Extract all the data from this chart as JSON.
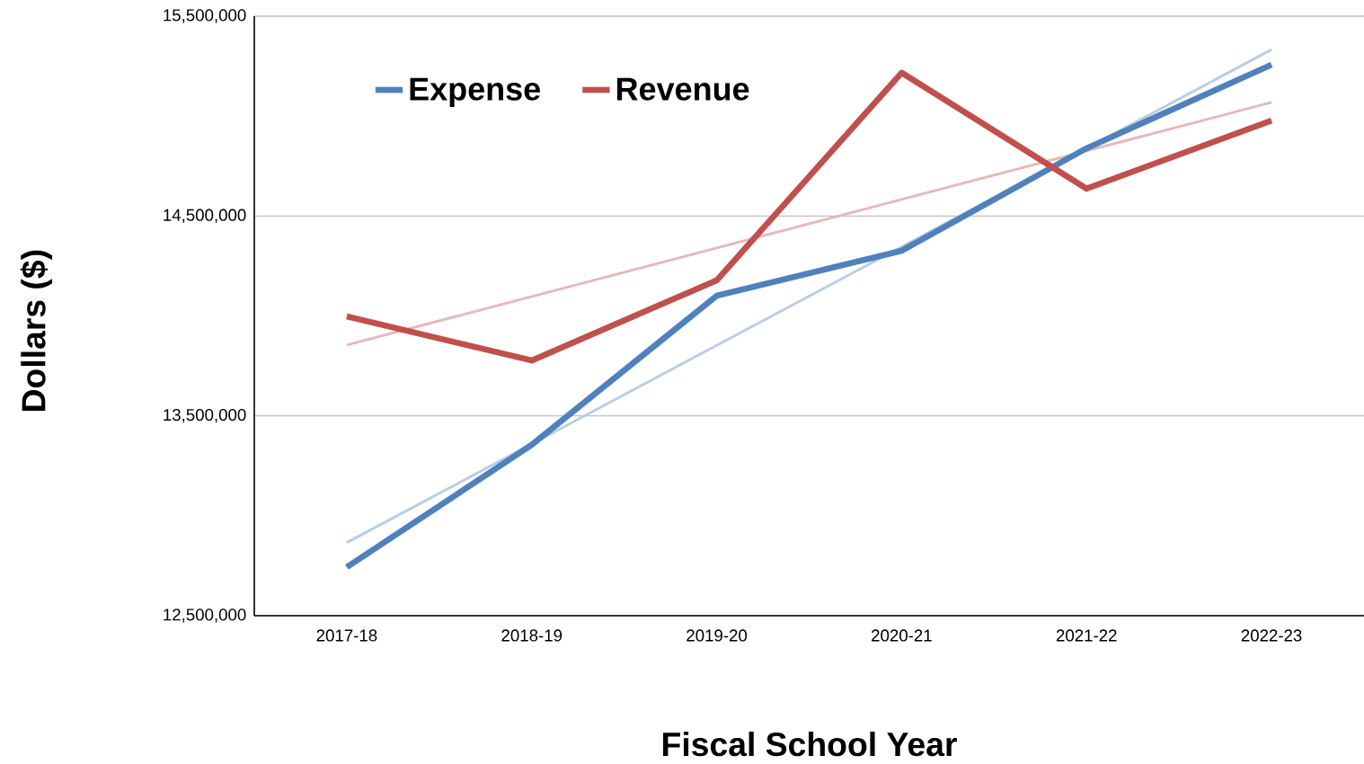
{
  "chart_data": {
    "type": "line",
    "xlabel": "Fiscal School Year",
    "ylabel": "Dollars ($)",
    "categories": [
      "2017-18",
      "2018-19",
      "2019-20",
      "2020-21",
      "2021-22",
      "2022-23"
    ],
    "series": [
      {
        "name": "Expense",
        "color": "#4f81bd",
        "values": [
          12743000,
          13355000,
          14101000,
          14326000,
          14839000,
          15257000
        ]
      },
      {
        "name": "Revenue",
        "color": "#c0504d",
        "values": [
          13998000,
          13777000,
          14178000,
          15217000,
          14637000,
          14978000
        ]
      },
      {
        "type": "line",
        "color": "#b9cde5",
        "values": [
          12866000,
          13359000,
          13853000,
          14346000,
          14839000,
          15333000
        ]
      },
      {
        "type": "line",
        "color": "#e6b9b8",
        "values": [
          13854000,
          14097000,
          14340000,
          14583000,
          14826000,
          15069000
        ]
      }
    ],
    "ylim": [
      12500000,
      15500000
    ],
    "yticks": [
      {
        "value": 12500000,
        "label": "12,500,000"
      },
      {
        "value": 13500000,
        "label": "13,500,000"
      },
      {
        "value": 14500000,
        "label": "14,500,000"
      },
      {
        "value": 15500000,
        "label": "15,500,000"
      }
    ],
    "grid": "y",
    "legend": "top left",
    "marker": "none",
    "line_style": "solid"
  }
}
